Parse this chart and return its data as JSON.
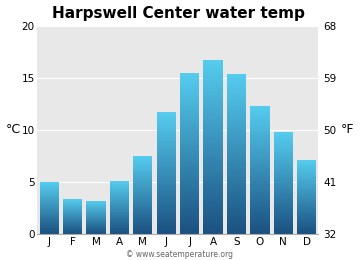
{
  "title": "Harpswell Center water temp",
  "months": [
    "J",
    "F",
    "M",
    "A",
    "M",
    "J",
    "J",
    "A",
    "S",
    "O",
    "N",
    "D"
  ],
  "values_c": [
    5.0,
    3.4,
    3.2,
    5.1,
    7.5,
    11.7,
    15.5,
    16.7,
    15.4,
    12.3,
    9.8,
    7.1
  ],
  "ylabel_left": "°C",
  "ylabel_right": "°F",
  "yticks_c": [
    0,
    5,
    10,
    15,
    20
  ],
  "yticks_f": [
    32,
    41,
    50,
    59,
    68
  ],
  "ylim_c": [
    0,
    20
  ],
  "bar_color_top": "#55ccee",
  "bar_color_bottom": "#1a5080",
  "background_color": "#dcdcdc",
  "plot_bg_color": "#e8e8e8",
  "title_fontsize": 11,
  "tick_fontsize": 7.5,
  "watermark": "© www.seatemperature.org"
}
